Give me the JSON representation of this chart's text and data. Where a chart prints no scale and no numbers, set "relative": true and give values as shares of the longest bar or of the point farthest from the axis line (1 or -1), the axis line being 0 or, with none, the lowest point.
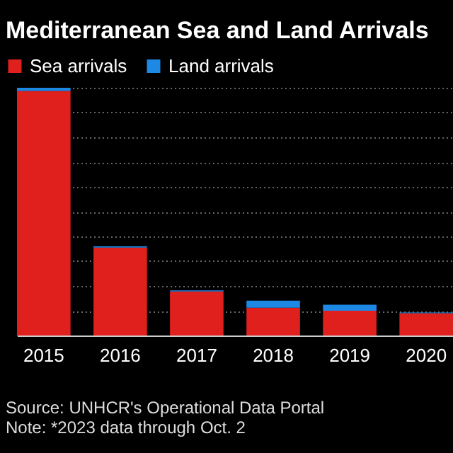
{
  "chart_data": {
    "type": "bar",
    "title": "Mediterranean Sea and Land Arrivals",
    "categories": [
      "2015",
      "2016",
      "2017",
      "2018",
      "2019",
      "2020"
    ],
    "stacked": true,
    "relative": true,
    "grid": "y",
    "legend": "top left",
    "series": [
      {
        "name": "Sea arrivals",
        "color": "#e0201c",
        "values": [
          0.987,
          0.355,
          0.178,
          0.112,
          0.1,
          0.09
        ]
      },
      {
        "name": "Land arrivals",
        "color": "#1e88e5",
        "values": [
          0.013,
          0.005,
          0.004,
          0.029,
          0.024,
          0.003
        ]
      }
    ],
    "annotations": [
      "Source: UNHCR's Operational Data Portal",
      "Note: *2023 data through Oct. 2"
    ]
  }
}
